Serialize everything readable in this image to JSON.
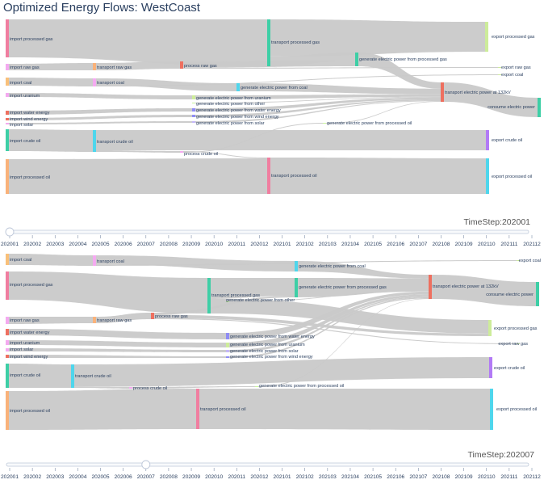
{
  "title": "Optimized Energy Flows: WestCoast",
  "colors": {
    "link": "#c9c9c9",
    "slider_track": "#f8fafc",
    "slider_border": "#bec8d9",
    "text": "#2a3f5f",
    "import_gas": "#f07ea0",
    "import_raw_gas": "#f4aaf0",
    "import_coal": "#f9c07a",
    "import_uranium": "#f4aaf0",
    "import_water": "#ee7060",
    "import_wind": "#ee7060",
    "import_solar": "#f4aaf0",
    "import_crude": "#3ecfa6",
    "import_processed_oil": "#f9b27a",
    "transport_gas": "#3ecfa6",
    "transport_raw_gas": "#f9b27a",
    "transport_coal": "#f4aaf0",
    "transport_crude": "#4fd6ec",
    "transport_oil": "#f07ea0",
    "process_raw_gas": "#ee7060",
    "process_crude": "#f4aaf0",
    "gen_gas": "#3ecfa6",
    "gen_coal": "#4fd6ec",
    "gen_uranium": "#cdec9a",
    "gen_other": "#c8f59a",
    "gen_water": "#8f8cf4",
    "gen_wind": "#8f8cf4",
    "gen_solar": "#c4b7f7",
    "gen_oil": "#c8f59a",
    "trans_elec": "#ee7060",
    "consume": "#3ecfa6",
    "export_gas": "#cdec9a",
    "export_crude": "#b27af6",
    "export_oil": "#4fd6ec"
  },
  "slider": {
    "ticks": [
      "202001",
      "202002",
      "202003",
      "202004",
      "202005",
      "202006",
      "202007",
      "202008",
      "202009",
      "202010",
      "202011",
      "202012",
      "202101",
      "202102",
      "202103",
      "202104",
      "202105",
      "202106",
      "202107",
      "202108",
      "202109",
      "202110",
      "202111",
      "202112"
    ]
  },
  "chart_data": [
    {
      "type": "sankey",
      "timestep_label": "TimeStep:202001",
      "active_step": "202001",
      "nodes": [
        {
          "label": "import processed gas"
        },
        {
          "label": "import raw gas"
        },
        {
          "label": "import coal"
        },
        {
          "label": "import uranium"
        },
        {
          "label": "import water energy"
        },
        {
          "label": "import wind energy"
        },
        {
          "label": "import solar"
        },
        {
          "label": "import crude oil"
        },
        {
          "label": "import processed oil"
        },
        {
          "label": "transport processed gas"
        },
        {
          "label": "transport raw gas"
        },
        {
          "label": "transport coal"
        },
        {
          "label": "transport crude oil"
        },
        {
          "label": "transport processed oil"
        },
        {
          "label": "process raw gas"
        },
        {
          "label": "process crude oil"
        },
        {
          "label": "generate electric power from processed gas"
        },
        {
          "label": "generate electric power from coal"
        },
        {
          "label": "generate electric power from uranium"
        },
        {
          "label": "generate electric power from other"
        },
        {
          "label": "generate electric power from water energy"
        },
        {
          "label": "generate electric power from wind energy"
        },
        {
          "label": "generate electric power from solar"
        },
        {
          "label": "generate electric power from processed oil"
        },
        {
          "label": "transport electric power at 132kV"
        },
        {
          "label": "consume electric power"
        },
        {
          "label": "export processed gas"
        },
        {
          "label": "export raw gas"
        },
        {
          "label": "export coal"
        },
        {
          "label": "export crude oil"
        },
        {
          "label": "export processed oil"
        }
      ],
      "links": [
        {
          "source": "import processed gas",
          "target": "transport processed gas",
          "value": 48
        },
        {
          "source": "transport processed gas",
          "target": "export processed gas",
          "value": 38
        },
        {
          "source": "transport processed gas",
          "target": "generate electric power from processed gas",
          "value": 10
        },
        {
          "source": "generate electric power from processed gas",
          "target": "transport electric power at 132kV",
          "value": 10
        },
        {
          "source": "import raw gas",
          "target": "transport raw gas",
          "value": 8
        },
        {
          "source": "transport raw gas",
          "target": "process raw gas",
          "value": 8
        },
        {
          "source": "process raw gas",
          "target": "generate electric power from processed gas",
          "value": 7
        },
        {
          "source": "process raw gas",
          "target": "export raw gas",
          "value": 1
        },
        {
          "source": "import coal",
          "target": "transport coal",
          "value": 10
        },
        {
          "source": "transport coal",
          "target": "generate electric power from coal",
          "value": 9
        },
        {
          "source": "transport coal",
          "target": "export coal",
          "value": 1
        },
        {
          "source": "generate electric power from coal",
          "target": "transport electric power at 132kV",
          "value": 9
        },
        {
          "source": "import uranium",
          "target": "generate electric power from uranium",
          "value": 4
        },
        {
          "source": "generate electric power from uranium",
          "target": "transport electric power at 132kV",
          "value": 4
        },
        {
          "source": "generate electric power from other",
          "target": "transport electric power at 132kV",
          "value": 1
        },
        {
          "source": "import water energy",
          "target": "generate electric power from water energy",
          "value": 3
        },
        {
          "source": "generate electric power from water energy",
          "target": "transport electric power at 132kV",
          "value": 3
        },
        {
          "source": "import wind energy",
          "target": "generate electric power from wind energy",
          "value": 2
        },
        {
          "source": "generate electric power from wind energy",
          "target": "transport electric power at 132kV",
          "value": 2
        },
        {
          "source": "import solar",
          "target": "generate electric power from solar",
          "value": 1
        },
        {
          "source": "generate electric power from solar",
          "target": "transport electric power at 132kV",
          "value": 1
        },
        {
          "source": "import crude oil",
          "target": "transport crude oil",
          "value": 27
        },
        {
          "source": "transport crude oil",
          "target": "export crude oil",
          "value": 25
        },
        {
          "source": "transport crude oil",
          "target": "process crude oil",
          "value": 2
        },
        {
          "source": "process crude oil",
          "target": "transport processed oil",
          "value": 1
        },
        {
          "source": "process crude oil",
          "target": "generate electric power from processed oil",
          "value": 1
        },
        {
          "source": "generate electric power from processed oil",
          "target": "transport electric power at 132kV",
          "value": 1
        },
        {
          "source": "import processed oil",
          "target": "transport processed oil",
          "value": 44
        },
        {
          "source": "transport processed oil",
          "target": "export processed oil",
          "value": 45
        },
        {
          "source": "transport electric power at 132kV",
          "target": "consume electric power",
          "value": 31
        }
      ]
    },
    {
      "type": "sankey",
      "timestep_label": "TimeStep:202007",
      "active_step": "202007",
      "nodes": [
        {
          "label": "import coal"
        },
        {
          "label": "import processed gas"
        },
        {
          "label": "import raw gas"
        },
        {
          "label": "import water energy"
        },
        {
          "label": "import uranium"
        },
        {
          "label": "import solar"
        },
        {
          "label": "import wind energy"
        },
        {
          "label": "import crude oil"
        },
        {
          "label": "import processed oil"
        },
        {
          "label": "transport coal"
        },
        {
          "label": "transport processed gas"
        },
        {
          "label": "transport raw gas"
        },
        {
          "label": "transport crude oil"
        },
        {
          "label": "transport processed oil"
        },
        {
          "label": "process raw gas"
        },
        {
          "label": "process crude oil"
        },
        {
          "label": "generate electric power from coal"
        },
        {
          "label": "generate electric power from processed gas"
        },
        {
          "label": "generate electric power from other"
        },
        {
          "label": "generate electric power from water energy"
        },
        {
          "label": "generate electric power from uranium"
        },
        {
          "label": "generate electric power from solar"
        },
        {
          "label": "generate electric power from wind energy"
        },
        {
          "label": "generate electric power from processed oil"
        },
        {
          "label": "transport electric power at 132kV"
        },
        {
          "label": "consume electric power"
        },
        {
          "label": "export coal"
        },
        {
          "label": "export processed gas"
        },
        {
          "label": "export raw gas"
        },
        {
          "label": "export crude oil"
        },
        {
          "label": "export processed oil"
        }
      ],
      "links": [
        {
          "source": "import coal",
          "target": "transport coal",
          "value": 8
        },
        {
          "source": "transport coal",
          "target": "generate electric power from coal",
          "value": 7
        },
        {
          "source": "transport coal",
          "target": "export coal",
          "value": 1
        },
        {
          "source": "generate electric power from coal",
          "target": "transport electric power at 132kV",
          "value": 7
        },
        {
          "source": "import processed gas",
          "target": "transport processed gas",
          "value": 38
        },
        {
          "source": "transport processed gas",
          "target": "generate electric power from processed gas",
          "value": 22
        },
        {
          "source": "transport processed gas",
          "target": "export processed gas",
          "value": 16
        },
        {
          "source": "generate electric power from processed gas",
          "target": "transport electric power at 132kV",
          "value": 24
        },
        {
          "source": "import raw gas",
          "target": "transport raw gas",
          "value": 6
        },
        {
          "source": "transport raw gas",
          "target": "process raw gas",
          "value": 6
        },
        {
          "source": "process raw gas",
          "target": "generate electric power from processed gas",
          "value": 2
        },
        {
          "source": "process raw gas",
          "target": "export processed gas",
          "value": 3
        },
        {
          "source": "process raw gas",
          "target": "export raw gas",
          "value": 1
        },
        {
          "source": "generate electric power from other",
          "target": "transport electric power at 132kV",
          "value": 1
        },
        {
          "source": "import water energy",
          "target": "generate electric power from water energy",
          "value": 5
        },
        {
          "source": "generate electric power from water energy",
          "target": "transport electric power at 132kV",
          "value": 5
        },
        {
          "source": "import uranium",
          "target": "generate electric power from uranium",
          "value": 4
        },
        {
          "source": "generate electric power from uranium",
          "target": "transport electric power at 132kV",
          "value": 4
        },
        {
          "source": "import solar",
          "target": "generate electric power from solar",
          "value": 2
        },
        {
          "source": "generate electric power from solar",
          "target": "transport electric power at 132kV",
          "value": 2
        },
        {
          "source": "import wind energy",
          "target": "generate electric power from wind energy",
          "value": 2
        },
        {
          "source": "generate electric power from wind energy",
          "target": "transport electric power at 132kV",
          "value": 2
        },
        {
          "source": "import crude oil",
          "target": "transport crude oil",
          "value": 23
        },
        {
          "source": "transport crude oil",
          "target": "export crude oil",
          "value": 22
        },
        {
          "source": "transport crude oil",
          "target": "process crude oil",
          "value": 1
        },
        {
          "source": "process crude oil",
          "target": "generate electric power from processed oil",
          "value": 1
        },
        {
          "source": "generate electric power from processed oil",
          "target": "transport electric power at 132kV",
          "value": 1
        },
        {
          "source": "import processed oil",
          "target": "transport processed oil",
          "value": 40
        },
        {
          "source": "transport processed oil",
          "target": "export processed oil",
          "value": 40
        },
        {
          "source": "transport electric power at 132kV",
          "target": "consume electric power",
          "value": 46
        }
      ]
    }
  ]
}
